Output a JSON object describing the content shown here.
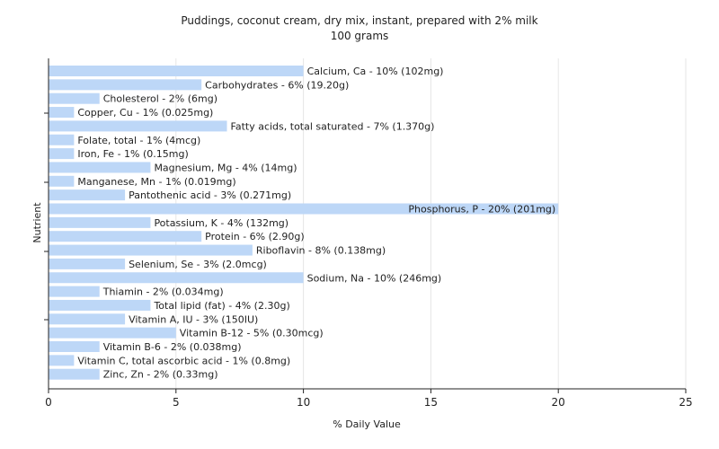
{
  "chart_data": {
    "type": "bar",
    "orientation": "horizontal",
    "title": "Puddings, coconut cream, dry mix, instant, prepared with 2% milk",
    "subtitle": "100 grams",
    "xlabel": "% Daily Value",
    "ylabel": "Nutrient",
    "xlim": [
      0,
      25
    ],
    "xticks": [
      0,
      5,
      10,
      15,
      20,
      25
    ],
    "grid": true,
    "bar_color": "#bdd7f7",
    "bars": [
      {
        "label": "Calcium, Ca - 10% (102mg)",
        "value": 10
      },
      {
        "label": "Carbohydrates - 6% (19.20g)",
        "value": 6
      },
      {
        "label": "Cholesterol - 2% (6mg)",
        "value": 2
      },
      {
        "label": "Copper, Cu - 1% (0.025mg)",
        "value": 1
      },
      {
        "label": "Fatty acids, total saturated - 7% (1.370g)",
        "value": 7
      },
      {
        "label": "Folate, total - 1% (4mcg)",
        "value": 1
      },
      {
        "label": "Iron, Fe - 1% (0.15mg)",
        "value": 1
      },
      {
        "label": "Magnesium, Mg - 4% (14mg)",
        "value": 4
      },
      {
        "label": "Manganese, Mn - 1% (0.019mg)",
        "value": 1
      },
      {
        "label": "Pantothenic acid - 3% (0.271mg)",
        "value": 3
      },
      {
        "label": "Phosphorus, P - 20% (201mg)",
        "value": 20
      },
      {
        "label": "Potassium, K - 4% (132mg)",
        "value": 4
      },
      {
        "label": "Protein - 6% (2.90g)",
        "value": 6
      },
      {
        "label": "Riboflavin - 8% (0.138mg)",
        "value": 8
      },
      {
        "label": "Selenium, Se - 3% (2.0mcg)",
        "value": 3
      },
      {
        "label": "Sodium, Na - 10% (246mg)",
        "value": 10
      },
      {
        "label": "Thiamin - 2% (0.034mg)",
        "value": 2
      },
      {
        "label": "Total lipid (fat) - 4% (2.30g)",
        "value": 4
      },
      {
        "label": "Vitamin A, IU - 3% (150IU)",
        "value": 3
      },
      {
        "label": "Vitamin B-12 - 5% (0.30mcg)",
        "value": 5
      },
      {
        "label": "Vitamin B-6 - 2% (0.038mg)",
        "value": 2
      },
      {
        "label": "Vitamin C, total ascorbic acid - 1% (0.8mg)",
        "value": 1
      },
      {
        "label": "Zinc, Zn - 2% (0.33mg)",
        "value": 2
      }
    ]
  }
}
